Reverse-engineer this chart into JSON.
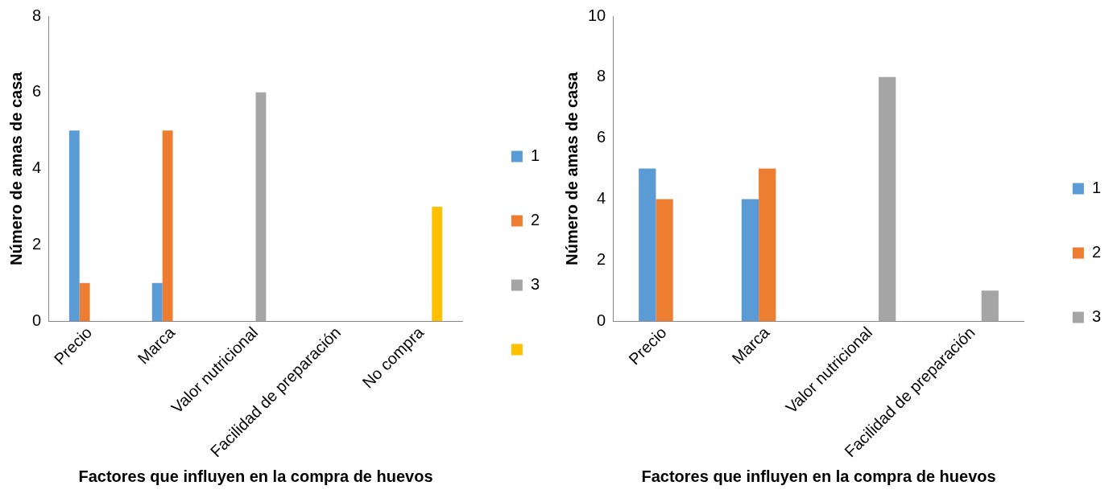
{
  "chart_data": [
    {
      "type": "bar",
      "xlabel": "Factores que influyen en la compra de huevos",
      "ylabel": "Número de amas de casa",
      "categories": [
        "Precio",
        "Marca",
        "Valor nutricional",
        "Facilidad de preparación",
        "No compra"
      ],
      "series": [
        {
          "name": "1",
          "color": "#5b9bd5",
          "values": [
            5,
            1,
            0,
            0,
            0
          ]
        },
        {
          "name": "2",
          "color": "#ed7d31",
          "values": [
            1,
            5,
            0,
            0,
            0
          ]
        },
        {
          "name": "3",
          "color": "#a5a5a5",
          "values": [
            0,
            0,
            6,
            0,
            0
          ]
        },
        {
          "color": "#ffc000",
          "values": [
            0,
            0,
            0,
            0,
            3
          ]
        }
      ],
      "ylim": [
        0,
        8
      ],
      "yticks": [
        0,
        2,
        4,
        6,
        8
      ],
      "grid": false,
      "legend": "right"
    },
    {
      "type": "bar",
      "xlabel": "Factores que influyen en la compra de huevos",
      "ylabel": "Número de amas de casa",
      "categories": [
        "Precio",
        "Marca",
        "Valor nutricional",
        "Facilidad de preparación"
      ],
      "series": [
        {
          "name": "1",
          "color": "#5b9bd5",
          "values": [
            5,
            4,
            0,
            0
          ]
        },
        {
          "name": "2",
          "color": "#ed7d31",
          "values": [
            4,
            5,
            0,
            0
          ]
        },
        {
          "name": "3",
          "color": "#a5a5a5",
          "values": [
            0,
            0,
            8,
            1
          ]
        }
      ],
      "ylim": [
        0,
        10
      ],
      "yticks": [
        0,
        2,
        4,
        6,
        8,
        10
      ],
      "grid": false,
      "legend": "right"
    }
  ]
}
